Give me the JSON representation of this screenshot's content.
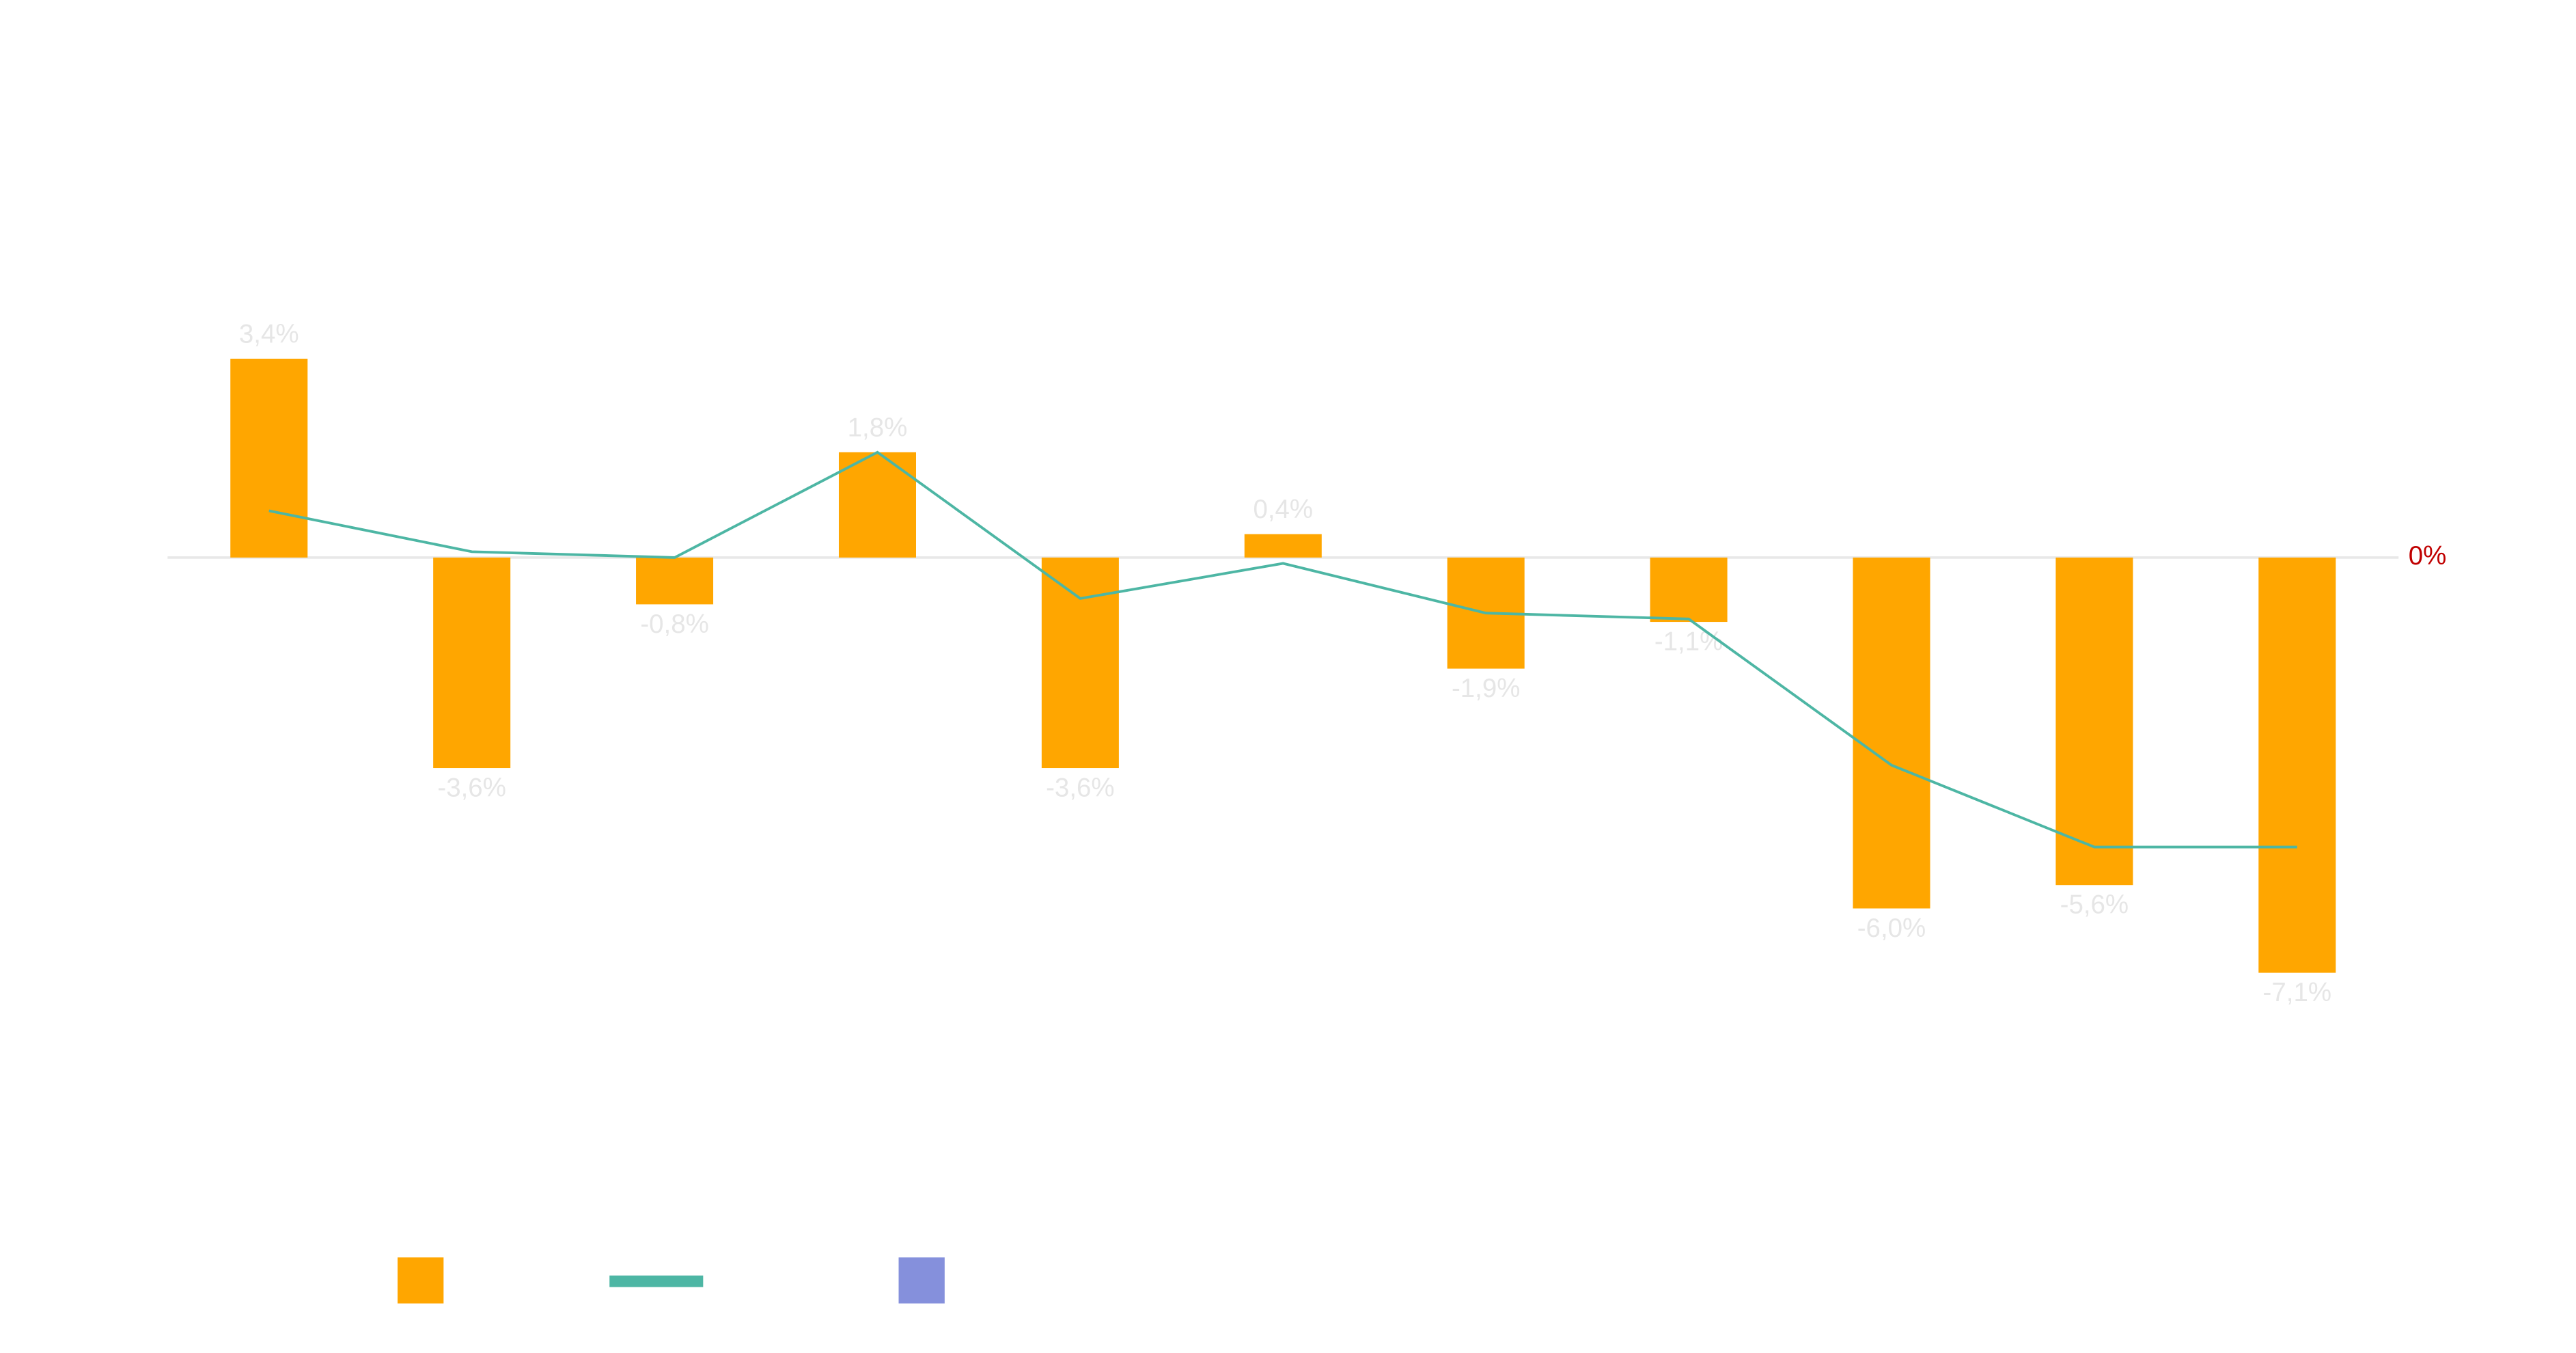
{
  "chart_data": {
    "type": "bar",
    "categories": [
      null,
      null,
      null,
      null,
      null,
      null,
      null,
      null,
      null,
      null,
      null
    ],
    "series": [
      {
        "type": "bar",
        "color": "#ffa600",
        "values": [
          3.4,
          -3.6,
          -0.8,
          1.8,
          -3.6,
          0.4,
          -1.9,
          -1.1,
          -6.0,
          -5.6,
          -7.1
        ],
        "value_labels": [
          "3,4%",
          "-3,6%",
          "-0,8%",
          "1,8%",
          "-3,6%",
          "0,4%",
          "-1,9%",
          "-1,1%",
          "-6,0%",
          "-5,6%",
          "-7,1%"
        ]
      },
      {
        "type": "line",
        "color": "#4db6a4",
        "values": [
          0.8,
          0.1,
          0.0,
          1.8,
          -0.7,
          -0.1,
          -0.95,
          -1.05,
          -3.55,
          -4.95,
          -4.95
        ]
      },
      {
        "type": "bar",
        "color": "#8590dc",
        "values": [
          null,
          null,
          null,
          null,
          null,
          null,
          null,
          null,
          null,
          null,
          null
        ]
      }
    ],
    "ylim": [
      -10,
      7
    ],
    "yticks": [
      {
        "value": 0,
        "label": "0%"
      }
    ],
    "tick_label_color": "#c00000"
  }
}
